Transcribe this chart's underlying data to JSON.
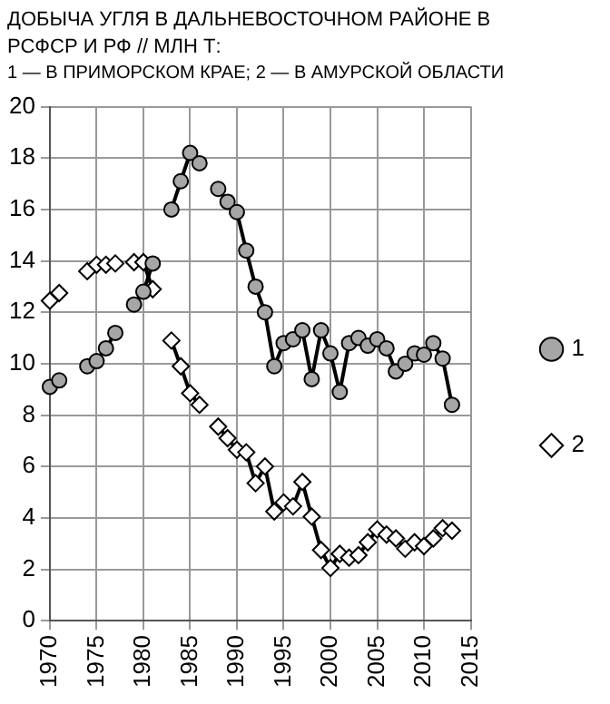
{
  "chart_data": {
    "type": "line",
    "title": "ДОБЫЧА  УГЛЯ В ДАЛЬНЕВОСТОЧНОМ РАЙОНЕ В РСФСР И РФ // МЛН  Т:",
    "subtitle": "1 — В ПРИМОРСКОМ КРАЕ;  2 — В АМУРСКОЙ ОБЛАСТИ",
    "x": [
      1970,
      1971,
      1972,
      1973,
      1974,
      1975,
      1976,
      1977,
      1978,
      1979,
      1980,
      1981,
      1982,
      1983,
      1984,
      1985,
      1986,
      1987,
      1988,
      1989,
      1990,
      1991,
      1992,
      1993,
      1994,
      1995,
      1996,
      1997,
      1998,
      1999,
      2000,
      2001,
      2002,
      2003,
      2004,
      2005,
      2006,
      2007,
      2008,
      2009,
      2010,
      2011,
      2012,
      2013
    ],
    "series": [
      {
        "name": "1",
        "color": "#000000",
        "marker": "circle",
        "values": [
          9.1,
          9.35,
          null,
          null,
          9.9,
          10.1,
          10.6,
          11.2,
          null,
          12.3,
          12.8,
          13.9,
          null,
          16.0,
          17.1,
          18.2,
          17.8,
          null,
          16.8,
          16.3,
          15.9,
          14.4,
          13.0,
          12.0,
          9.9,
          10.8,
          10.95,
          11.3,
          9.4,
          11.3,
          10.4,
          8.9,
          10.8,
          11.0,
          10.7,
          10.95,
          10.6,
          9.7,
          10.0,
          10.4,
          10.35,
          10.8,
          10.2,
          8.4
        ]
      },
      {
        "name": "2",
        "color": "#000000",
        "marker": "diamond",
        "values": [
          12.45,
          12.75,
          null,
          null,
          13.6,
          13.85,
          13.85,
          13.9,
          null,
          13.95,
          13.95,
          12.9,
          null,
          10.9,
          9.9,
          8.85,
          8.4,
          null,
          7.55,
          7.1,
          6.65,
          6.55,
          5.35,
          6.0,
          4.25,
          4.6,
          4.45,
          5.4,
          4.05,
          2.75,
          2.05,
          2.6,
          2.45,
          2.55,
          3.05,
          3.55,
          3.35,
          3.2,
          2.8,
          3.05,
          2.9,
          3.2,
          3.6,
          3.5
        ]
      }
    ],
    "xlim": [
      1970,
      2015
    ],
    "xticks": [
      1970,
      1975,
      1980,
      1985,
      1990,
      1995,
      2000,
      2005,
      2010,
      2015
    ],
    "ylim": [
      0,
      20
    ],
    "yticks": [
      0,
      2,
      4,
      6,
      8,
      10,
      12,
      14,
      16,
      18,
      20
    ],
    "grid": true,
    "legend": "right"
  }
}
